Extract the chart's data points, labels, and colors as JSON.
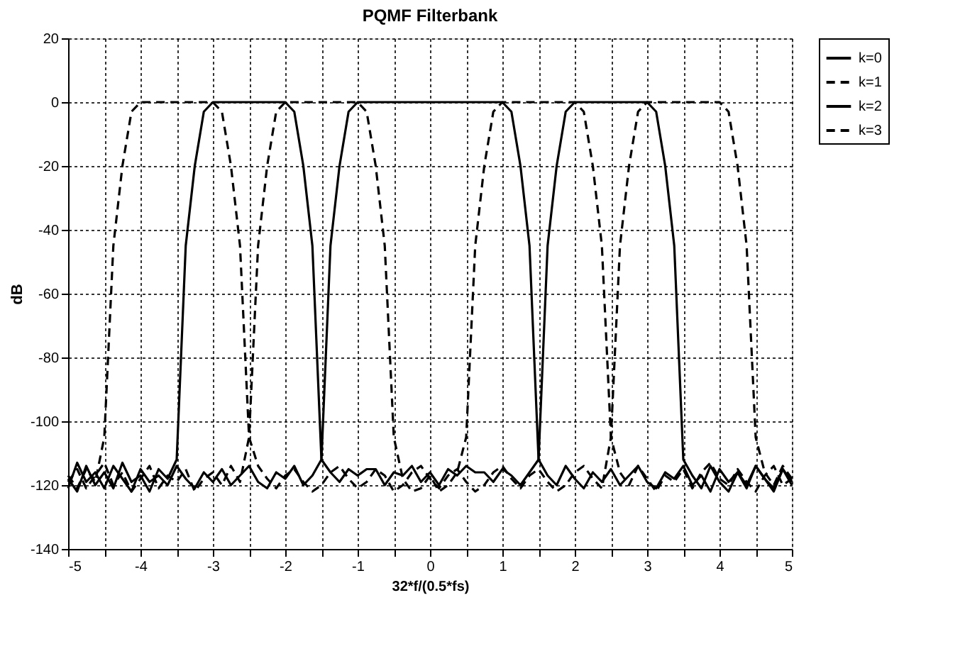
{
  "chart_data": {
    "type": "line",
    "title": "PQMF Filterbank",
    "xlabel": "32*f/(0.5*fs)",
    "ylabel": "dB",
    "x": [
      -5,
      -4.875,
      -4.75,
      -4.625,
      -4.5,
      -4.375,
      -4.25,
      -4.125,
      -4,
      -3.875,
      -3.75,
      -3.625,
      -3.5,
      -3.375,
      -3.25,
      -3.125,
      -3,
      -2.875,
      -2.75,
      -2.625,
      -2.5,
      -2.375,
      -2.25,
      -2.125,
      -2,
      -1.875,
      -1.75,
      -1.625,
      -1.5,
      -1.375,
      -1.25,
      -1.125,
      -1,
      -0.875,
      -0.75,
      -0.625,
      -0.5,
      -0.375,
      -0.25,
      -0.125,
      0,
      0.125,
      0.25,
      0.375,
      0.5,
      0.625,
      0.75,
      0.875,
      1,
      1.125,
      1.25,
      1.375,
      1.5,
      1.625,
      1.75,
      1.875,
      2,
      2.125,
      2.25,
      2.375,
      2.5,
      2.625,
      2.75,
      2.875,
      3,
      3.125,
      3.25,
      3.375,
      3.5,
      3.625,
      3.75,
      3.875,
      4,
      4.125,
      4.25,
      4.375,
      4.5,
      4.625,
      4.75,
      4.875,
      5
    ],
    "series": [
      {
        "name": "k=0",
        "color": "#000000",
        "line_style": "solid",
        "values": [
          -121,
          -113,
          -119,
          -116,
          -121,
          -114,
          -118,
          -122,
          -115,
          -119,
          -117,
          -120,
          -114,
          -118,
          -121,
          -116,
          -119,
          -115,
          -120,
          -117,
          -114,
          -119,
          -121,
          -116,
          -118,
          -114,
          -120,
          -117,
          -112,
          -45,
          -20,
          -3,
          0,
          0,
          0,
          0,
          0,
          0,
          0,
          0,
          0,
          0,
          0,
          0,
          0,
          0,
          0,
          0,
          0,
          -3,
          -20,
          -45,
          -112,
          -117,
          -120,
          -114,
          -118,
          -121,
          -116,
          -119,
          -115,
          -120,
          -117,
          -114,
          -119,
          -121,
          -116,
          -118,
          -114,
          -120,
          -117,
          -122,
          -115,
          -119,
          -116,
          -121,
          -114,
          -118,
          -122,
          -115,
          -120
        ]
      },
      {
        "name": "k=1",
        "color": "#000000",
        "line_style": "dashed",
        "values": [
          -117,
          -121,
          -115,
          -119,
          -105,
          -45,
          -20,
          -3,
          0,
          0,
          0,
          0,
          0,
          0,
          0,
          0,
          0,
          -3,
          -20,
          -45,
          -105,
          -114,
          -118,
          -121,
          -117,
          -115,
          -119,
          -122,
          -120,
          -116,
          -114,
          -118,
          -121,
          -119,
          -115,
          -117,
          -122,
          -120,
          -116,
          -114,
          -118,
          -121,
          -117,
          -115,
          -119,
          -122,
          -120,
          -116,
          -114,
          -118,
          -121,
          -117,
          -115,
          -119,
          -122,
          -120,
          -116,
          -114,
          -118,
          -121,
          -105,
          -45,
          -20,
          -3,
          0,
          0,
          0,
          0,
          0,
          0,
          0,
          0,
          0,
          -3,
          -20,
          -45,
          -105,
          -116,
          -120,
          -114,
          -118
        ]
      },
      {
        "name": "k=2",
        "color": "#000000",
        "line_style": "solid",
        "values": [
          -118,
          -122,
          -114,
          -120,
          -116,
          -121,
          -113,
          -119,
          -117,
          -122,
          -115,
          -118,
          -112,
          -45,
          -20,
          -3,
          0,
          0,
          0,
          0,
          0,
          0,
          0,
          0,
          0,
          -3,
          -20,
          -45,
          -112,
          -116,
          -119,
          -115,
          -117,
          -115,
          -115,
          -120,
          -116,
          -117,
          -114,
          -119,
          -116,
          -120,
          -115,
          -117,
          -114,
          -116,
          -116,
          -119,
          -115,
          -117,
          -120,
          -116,
          -112,
          -45,
          -20,
          -3,
          0,
          0,
          0,
          0,
          0,
          0,
          0,
          0,
          0,
          -3,
          -20,
          -45,
          -112,
          -117,
          -121,
          -114,
          -119,
          -122,
          -116,
          -120,
          -114,
          -118,
          -121,
          -115,
          -119
        ]
      },
      {
        "name": "k=3",
        "color": "#000000",
        "line_style": "dashed",
        "values": [
          -119,
          -115,
          -121,
          -117,
          -113,
          -120,
          -116,
          -122,
          -118,
          -114,
          -121,
          -117,
          -119,
          -115,
          -122,
          -118,
          -116,
          -120,
          -114,
          -119,
          -105,
          -45,
          -20,
          -3,
          0,
          0,
          0,
          0,
          0,
          0,
          0,
          0,
          0,
          -3,
          -20,
          -45,
          -105,
          -118,
          -122,
          -121,
          -117,
          -122,
          -120,
          -116,
          -105,
          -45,
          -20,
          -3,
          0,
          0,
          0,
          0,
          0,
          0,
          0,
          0,
          0,
          -3,
          -20,
          -45,
          -105,
          -116,
          -120,
          -114,
          -118,
          -122,
          -117,
          -119,
          -115,
          -121,
          -116,
          -113,
          -118,
          -120,
          -115,
          -119,
          -122,
          -117,
          -114,
          -120,
          -118
        ]
      }
    ],
    "xlim": [
      -5,
      5
    ],
    "xticks": [
      -5,
      {
        "value": -4.5,
        "label": null
      },
      -4,
      {
        "value": -3.5,
        "label": null
      },
      -3,
      {
        "value": -2.5,
        "label": null
      },
      -2,
      {
        "value": -1.5,
        "label": null
      },
      -1,
      {
        "value": -0.5,
        "label": null
      },
      0,
      {
        "value": 0.5,
        "label": null
      },
      1,
      {
        "value": 1.5,
        "label": null
      },
      2,
      {
        "value": 2.5,
        "label": null
      },
      3,
      {
        "value": 3.5,
        "label": null
      },
      4,
      {
        "value": 4.5,
        "label": null
      },
      5
    ],
    "ylim": [
      -140,
      20
    ],
    "yticks": [
      -140,
      -120,
      -100,
      -80,
      -60,
      -40,
      -20,
      0,
      20
    ],
    "grid": true,
    "legend": "right",
    "marker": "none"
  }
}
